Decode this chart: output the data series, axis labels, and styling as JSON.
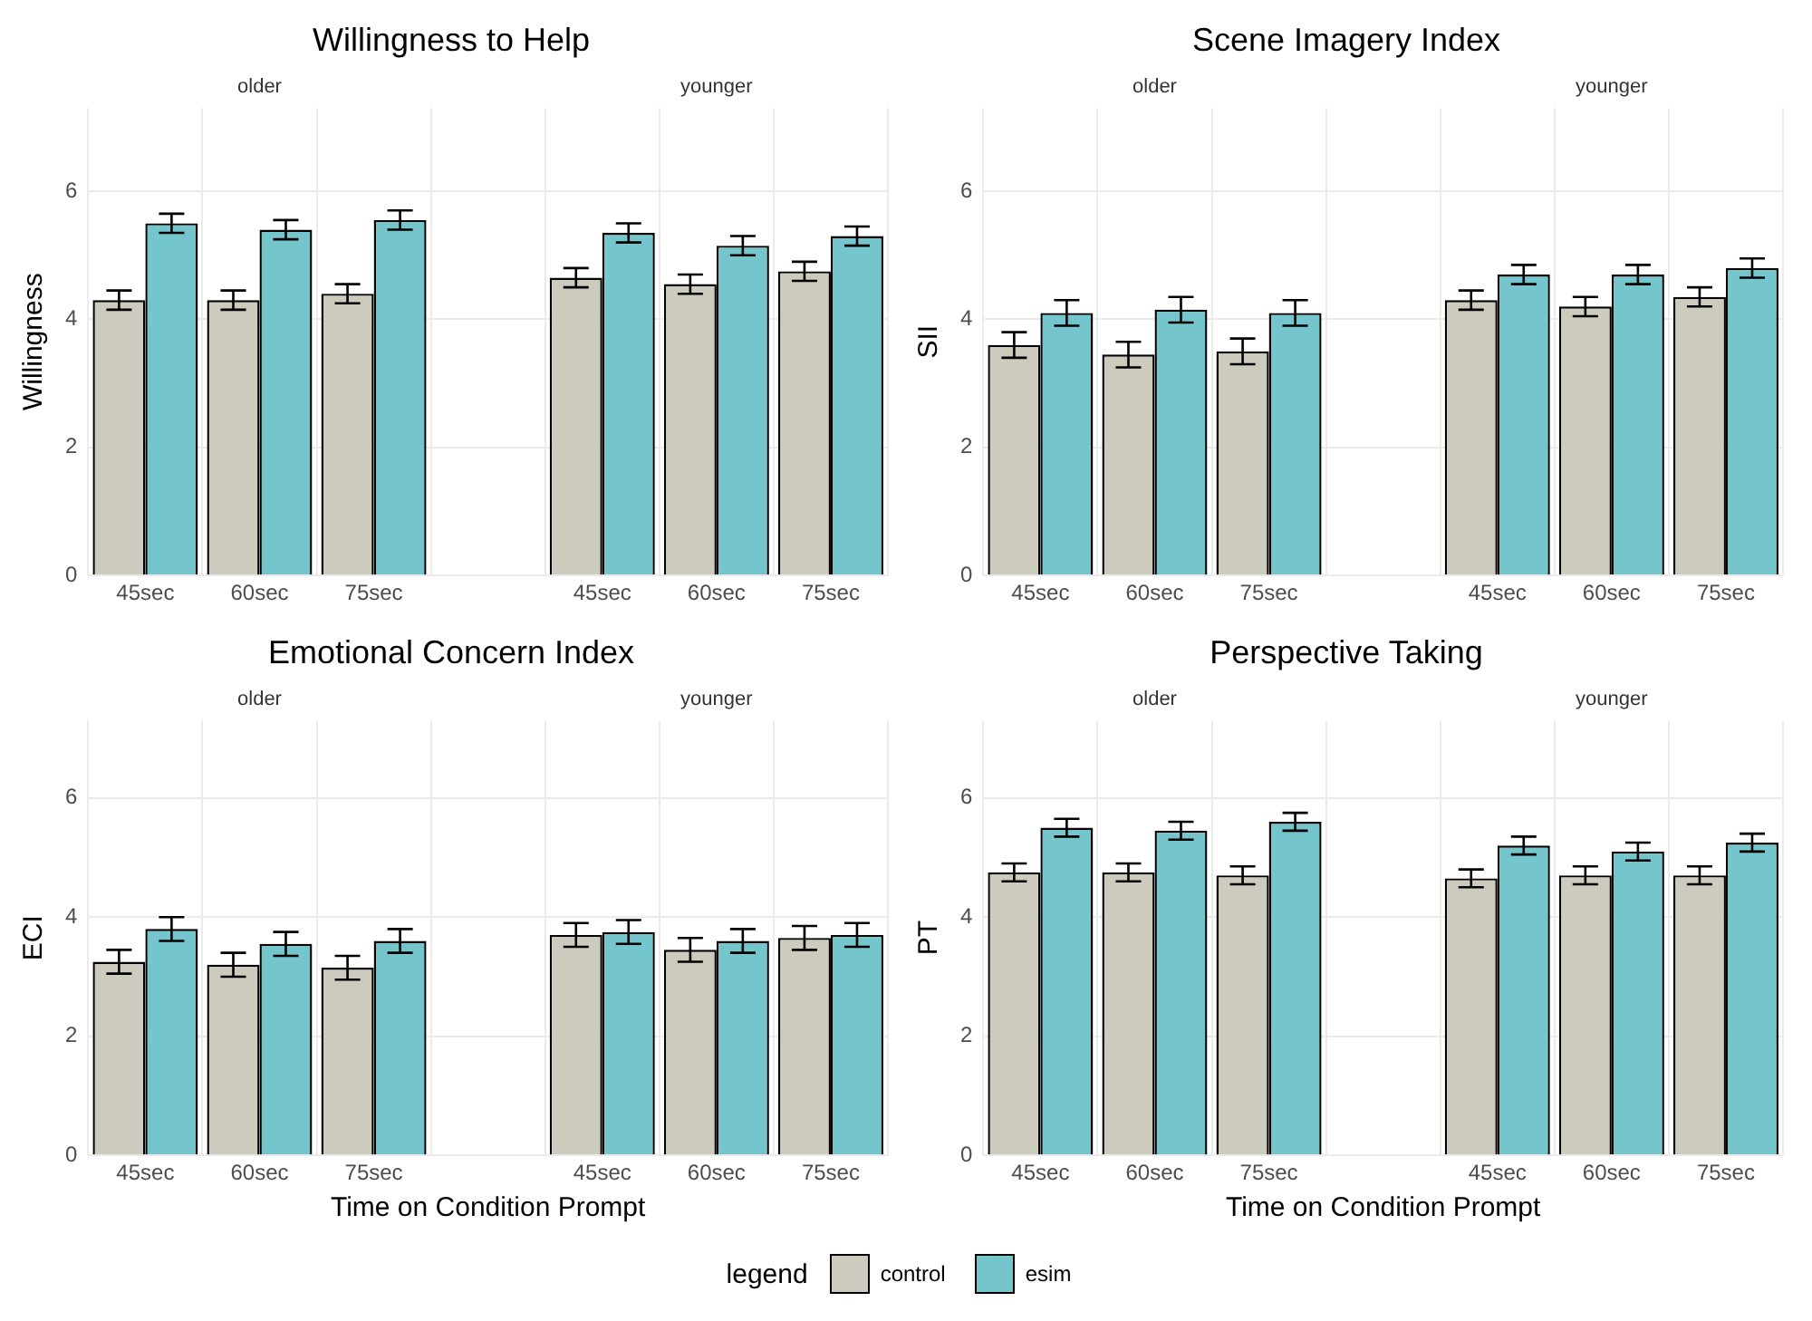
{
  "chart_data": [
    {
      "type": "bar",
      "title": "Willingness to Help",
      "ylabel": "Willingness",
      "annotations": [
        "older",
        "younger"
      ],
      "categories": [
        "45sec",
        "60sec",
        "75sec",
        "45sec",
        "60sec",
        "75sec"
      ],
      "ylim": [
        0,
        7.3
      ],
      "yticks": [
        0,
        2,
        4,
        6
      ],
      "grid": true,
      "series": [
        {
          "color": "#cdcbbd",
          "values": [
            4.3,
            4.3,
            4.4,
            4.65,
            4.55,
            4.75
          ],
          "errors": [
            0.15,
            0.15,
            0.15,
            0.15,
            0.15,
            0.15
          ]
        },
        {
          "color": "#74c5cc",
          "values": [
            5.5,
            5.4,
            5.55,
            5.35,
            5.15,
            5.3
          ],
          "errors": [
            0.15,
            0.15,
            0.15,
            0.15,
            0.15,
            0.15
          ]
        }
      ]
    },
    {
      "type": "bar",
      "title": "Scene Imagery Index",
      "ylabel": "SII",
      "annotations": [
        "older",
        "younger"
      ],
      "categories": [
        "45sec",
        "60sec",
        "75sec",
        "45sec",
        "60sec",
        "75sec"
      ],
      "ylim": [
        0,
        7.3
      ],
      "yticks": [
        0,
        2,
        4,
        6
      ],
      "grid": true,
      "series": [
        {
          "color": "#cdcbbd",
          "values": [
            3.6,
            3.45,
            3.5,
            4.3,
            4.2,
            4.35
          ],
          "errors": [
            0.2,
            0.2,
            0.2,
            0.15,
            0.15,
            0.15
          ]
        },
        {
          "color": "#74c5cc",
          "values": [
            4.1,
            4.15,
            4.1,
            4.7,
            4.7,
            4.8
          ],
          "errors": [
            0.2,
            0.2,
            0.2,
            0.15,
            0.15,
            0.15
          ]
        }
      ]
    },
    {
      "type": "bar",
      "title": "Emotional Concern Index",
      "ylabel": "ECI",
      "xlabel": "Time on Condition Prompt",
      "annotations": [
        "older",
        "younger"
      ],
      "categories": [
        "45sec",
        "60sec",
        "75sec",
        "45sec",
        "60sec",
        "75sec"
      ],
      "ylim": [
        0,
        7.3
      ],
      "yticks": [
        0,
        2,
        4,
        6
      ],
      "grid": true,
      "series": [
        {
          "color": "#cdcbbd",
          "values": [
            3.25,
            3.2,
            3.15,
            3.7,
            3.45,
            3.65
          ],
          "errors": [
            0.2,
            0.2,
            0.2,
            0.2,
            0.2,
            0.2
          ]
        },
        {
          "color": "#74c5cc",
          "values": [
            3.8,
            3.55,
            3.6,
            3.75,
            3.6,
            3.7
          ],
          "errors": [
            0.2,
            0.2,
            0.2,
            0.2,
            0.2,
            0.2
          ]
        }
      ]
    },
    {
      "type": "bar",
      "title": "Perspective Taking",
      "ylabel": "PT",
      "xlabel": "Time on Condition Prompt",
      "annotations": [
        "older",
        "younger"
      ],
      "categories": [
        "45sec",
        "60sec",
        "75sec",
        "45sec",
        "60sec",
        "75sec"
      ],
      "ylim": [
        0,
        7.3
      ],
      "yticks": [
        0,
        2,
        4,
        6
      ],
      "grid": true,
      "legend": "bottom",
      "legend_title": "legend",
      "series": [
        {
          "name": "control",
          "color": "#cdcbbd",
          "values": [
            4.75,
            4.75,
            4.7,
            4.65,
            4.7,
            4.7
          ],
          "errors": [
            0.15,
            0.15,
            0.15,
            0.15,
            0.15,
            0.15
          ]
        },
        {
          "name": "esim",
          "color": "#74c5cc",
          "values": [
            5.5,
            5.45,
            5.6,
            5.2,
            5.1,
            5.25
          ],
          "errors": [
            0.15,
            0.15,
            0.15,
            0.15,
            0.15,
            0.15
          ]
        }
      ]
    }
  ]
}
